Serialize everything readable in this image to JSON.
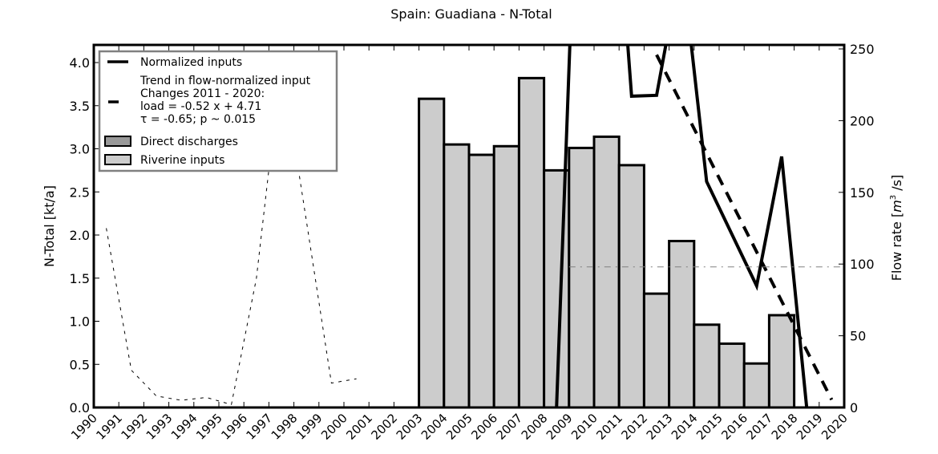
{
  "chart_data": {
    "type": "bar",
    "title": "Spain: Guadiana - N-Total",
    "xlabel": "",
    "ylabel": "N-Total [kt/a]",
    "ylabel_right": "Flow rate [m³/s]",
    "xlim": [
      1990,
      2020
    ],
    "ylim": [
      0,
      4.2
    ],
    "ylim_right": [
      0,
      250
    ],
    "grid": false,
    "legend_position": "upper left",
    "x_ticks": [
      "1990",
      "1991",
      "1992",
      "1993",
      "1994",
      "1995",
      "1996",
      "1997",
      "1998",
      "1999",
      "2000",
      "2001",
      "2002",
      "2003",
      "2004",
      "2005",
      "2006",
      "2007",
      "2008",
      "2009",
      "2010",
      "2011",
      "2012",
      "2013",
      "2014",
      "2015",
      "2016",
      "2017",
      "2018",
      "2019",
      "2020"
    ],
    "y_ticks": [
      "0.0",
      "0.5",
      "1.0",
      "1.5",
      "2.0",
      "2.5",
      "3.0",
      "3.5",
      "4.0"
    ],
    "y_ticks_right": [
      "0",
      "50",
      "100",
      "150",
      "200",
      "250"
    ],
    "categories": [
      2003,
      2004,
      2005,
      2006,
      2007,
      2008,
      2009,
      2010,
      2011,
      2012,
      2013,
      2014,
      2015,
      2016,
      2017
    ],
    "series": [
      {
        "name": "Riverine inputs",
        "type": "bar",
        "axis": "left",
        "color": "#cccccc",
        "values": [
          3.58,
          3.05,
          2.93,
          3.03,
          3.82,
          2.75,
          3.01,
          3.14,
          2.81,
          1.32,
          1.93,
          0.96,
          0.74,
          0.51,
          1.07
        ]
      },
      {
        "name": "Direct discharges",
        "type": "bar",
        "axis": "left",
        "color": "#999999",
        "values": [
          0,
          0,
          0,
          0,
          0,
          0,
          0,
          0,
          0,
          0,
          0,
          0,
          0,
          0,
          0
        ]
      },
      {
        "name": "Normalized inputs",
        "type": "line",
        "axis": "left",
        "color": "#000000",
        "x": [
          2008.5,
          2009.5,
          2010.5,
          2011.5,
          2012.5,
          2013.5,
          2014.5,
          2016.5,
          2017.5,
          2018.5
        ],
        "values": [
          0.0,
          7.9,
          7.5,
          3.61,
          3.62,
          5.2,
          2.62,
          1.41,
          2.91,
          0.0
        ]
      },
      {
        "name": "Trend in flow-normalized input",
        "type": "line",
        "style": "dashed",
        "axis": "left",
        "color": "#000000",
        "x": [
          2012.5,
          2019.5
        ],
        "values": [
          4.09,
          0.09
        ]
      },
      {
        "name": "Flow rate",
        "type": "line",
        "style": "dashed-thin",
        "axis": "right",
        "color": "#000000",
        "x": [
          1990.5,
          1991.5,
          1992.5,
          1993.5,
          1994.5,
          1995.5,
          1996.5,
          1997.5,
          1998.5,
          1999.5,
          2000.5
        ],
        "values": [
          125,
          26,
          8,
          5,
          7,
          2,
          90,
          242,
          130,
          17,
          20
        ]
      },
      {
        "name": "Mean flow",
        "type": "line",
        "style": "dashdot",
        "axis": "right",
        "color": "#808080",
        "x": [
          2009.0,
          2020.0
        ],
        "values": [
          98,
          98
        ]
      }
    ],
    "legend": [
      {
        "label": "Normalized inputs",
        "handle": "line"
      },
      {
        "label": "Trend in flow-normalized input\nChanges 2011 - 2020:\nload = -0.52 x +  4.71\nτ = -0.65; p ~ 0.015",
        "handle": "dash"
      },
      {
        "label": "Direct discharges",
        "handle": "patch",
        "color": "#999999"
      },
      {
        "label": "Riverine inputs",
        "handle": "patch",
        "color": "#cccccc"
      }
    ]
  },
  "labels": {
    "title": "Spain: Guadiana - N-Total",
    "ylabel_left": "N-Total [kt/a]",
    "ylabel_right_main": "Flow rate [",
    "ylabel_right_unit": "m",
    "ylabel_right_sup": "3",
    "ylabel_right_end": " /s]",
    "legend_1": "Normalized inputs",
    "legend_2_l1": "Trend in flow-normalized input",
    "legend_2_l2": "Changes 2011 - 2020:",
    "legend_2_l3": "load = -0.52 x +  4.71",
    "legend_2_l4": "τ = -0.65; p ~ 0.015",
    "legend_3": "Direct discharges",
    "legend_4": "Riverine inputs"
  }
}
